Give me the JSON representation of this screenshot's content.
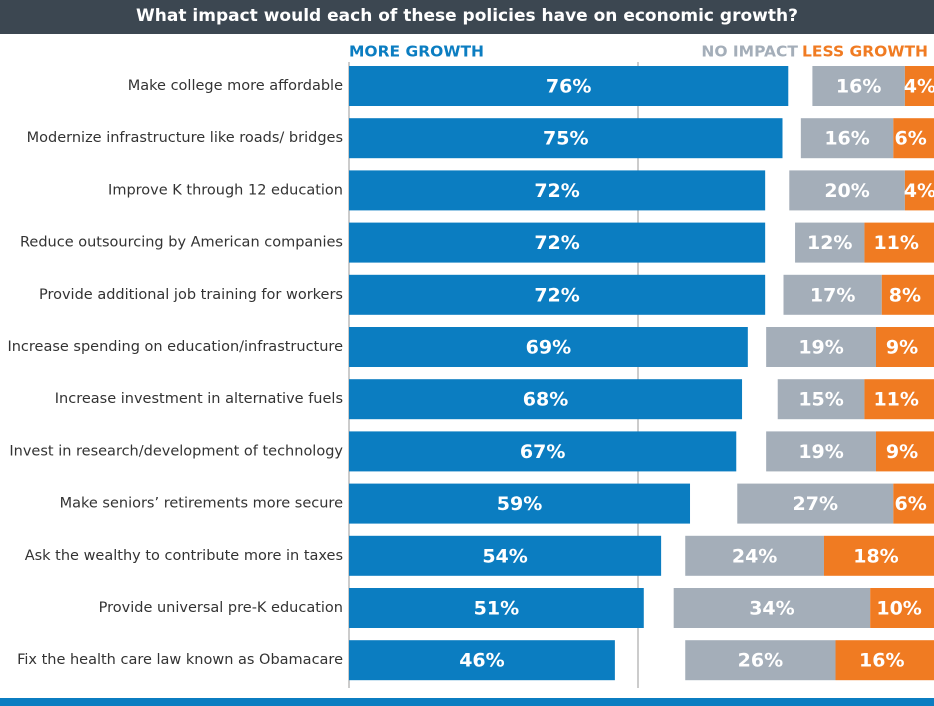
{
  "chart_data": {
    "type": "bar",
    "orientation": "horizontal",
    "title": "What impact would each of these policies have on economic growth?",
    "categories": [
      "Make college more affordable",
      "Modernize infrastructure like roads/ bridges",
      "Improve K through 12 education",
      "Reduce outsourcing by American companies",
      "Provide additional job training for workers",
      "Increase spending on education/infrastructure",
      "Increase investment in alternative fuels",
      "Invest in research/development of technology",
      "Make seniors’ retirements more secure",
      "Ask the wealthy to contribute more in taxes",
      "Provide universal pre-K education",
      "Fix the health care law known as Obamacare"
    ],
    "series": [
      {
        "name": "MORE GROWTH",
        "color": "#0b7dc1",
        "values": [
          76,
          75,
          72,
          72,
          72,
          69,
          68,
          67,
          59,
          54,
          51,
          46
        ],
        "value_labels": [
          "76%",
          "75%",
          "72%",
          "72%",
          "72%",
          "69%",
          "68%",
          "67%",
          "59%",
          "54%",
          "51%",
          "46%"
        ]
      },
      {
        "name": "NO IMPACT",
        "color": "#a4aeb9",
        "values": [
          16,
          16,
          20,
          12,
          17,
          19,
          15,
          19,
          27,
          24,
          34,
          26
        ],
        "value_labels": [
          "16%",
          "16%",
          "20%",
          "12%",
          "17%",
          "19%",
          "15%",
          "19%",
          "27%",
          "24%",
          "34%",
          "26%"
        ]
      },
      {
        "name": "LESS GROWTH",
        "color": "#f07b22",
        "values": [
          4,
          6,
          4,
          11,
          8,
          9,
          11,
          9,
          6,
          18,
          10,
          16
        ],
        "value_labels": [
          "4%",
          "6%",
          "4%",
          "11%",
          "8%",
          "9%",
          "11%",
          "9%",
          "6%",
          "18%",
          "10%",
          "16%"
        ]
      }
    ],
    "reference_line": 50
  }
}
